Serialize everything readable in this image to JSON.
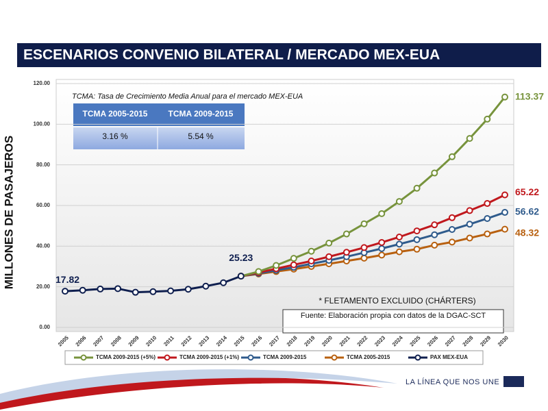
{
  "chart_data": {
    "type": "line",
    "title": "ESCENARIOS CONVENIO BILATERAL / MERCADO MEX-EUA",
    "y_label": "MILLONES DE PASAJEROS",
    "note": "TCMA:  Tasa de Crecimiento Media Anual para el mercado MEX-EUA",
    "annotation": "* FLETAMENTO EXCLUIDO (CHÁRTERS)",
    "source": "Fuente: Elaboración propia con datos de la DGAC-SCT",
    "footer": "LA LÍNEA QUE NOS UNE",
    "table": {
      "headers": [
        "TCMA 2005-2015",
        "TCMA 2009-2015"
      ],
      "rows": [
        [
          "3.16 %",
          "5.54 %"
        ]
      ]
    },
    "categories": [
      "2005",
      "2006",
      "2007",
      "2008",
      "2009",
      "2010",
      "2011",
      "2012",
      "2013",
      "2014",
      "2015",
      "2016",
      "2017",
      "2018",
      "2019",
      "2020",
      "2021",
      "2022",
      "2023",
      "2024",
      "2025",
      "2026",
      "2027",
      "2028",
      "2029",
      "2030"
    ],
    "series": [
      {
        "name": "TCMA 2009-2015 (+5%)",
        "color": "#77933c",
        "values": [
          null,
          null,
          null,
          null,
          null,
          null,
          null,
          null,
          null,
          null,
          25.23,
          27.5,
          30.5,
          34,
          37.5,
          41.5,
          46,
          51,
          56,
          62,
          68.5,
          76,
          84,
          93,
          102.5,
          113.37
        ]
      },
      {
        "name": "TCMA 2009-2015 (+1%)",
        "color": "#c0181d",
        "values": [
          null,
          null,
          null,
          null,
          null,
          null,
          null,
          null,
          null,
          null,
          25.23,
          27,
          28.9,
          30.8,
          32.7,
          34.8,
          37,
          39.3,
          41.8,
          44.5,
          47.5,
          50.5,
          54,
          57.5,
          61,
          65.22
        ]
      },
      {
        "name": "TCMA 2009-2015",
        "color": "#2f5b8c",
        "values": [
          null,
          null,
          null,
          null,
          null,
          null,
          null,
          null,
          null,
          null,
          25.23,
          26.6,
          28.1,
          29.6,
          31.3,
          33,
          34.8,
          36.8,
          38.8,
          41,
          43.2,
          45.6,
          48.2,
          50.8,
          53.6,
          56.62
        ]
      },
      {
        "name": "TCMA 2005-2015",
        "color": "#b8600f",
        "values": [
          null,
          null,
          null,
          null,
          null,
          null,
          null,
          null,
          null,
          null,
          25.23,
          26.3,
          27.5,
          28.7,
          30,
          31.3,
          32.7,
          34.1,
          35.6,
          37.2,
          38.5,
          40.5,
          42,
          44,
          46,
          48.32
        ]
      },
      {
        "name": "PAX MEX-EUA",
        "color": "#0f1f4f",
        "values": [
          17.82,
          18.3,
          18.9,
          19.1,
          17.3,
          17.6,
          18,
          18.8,
          20.3,
          22,
          25.23,
          null,
          null,
          null,
          null,
          null,
          null,
          null,
          null,
          null,
          null,
          null,
          null,
          null,
          null,
          null
        ]
      }
    ],
    "ylim": [
      0,
      120
    ],
    "yticks": [
      {
        "value": 0,
        "label": "0.00"
      },
      {
        "value": 20,
        "label": "20.00"
      },
      {
        "value": 40,
        "label": "40.00"
      },
      {
        "value": 60,
        "label": "60.00"
      },
      {
        "value": 80,
        "label": "80.00"
      },
      {
        "value": 100,
        "label": "100.00"
      },
      {
        "value": 120,
        "label": "120.00"
      }
    ],
    "grid": true
  }
}
